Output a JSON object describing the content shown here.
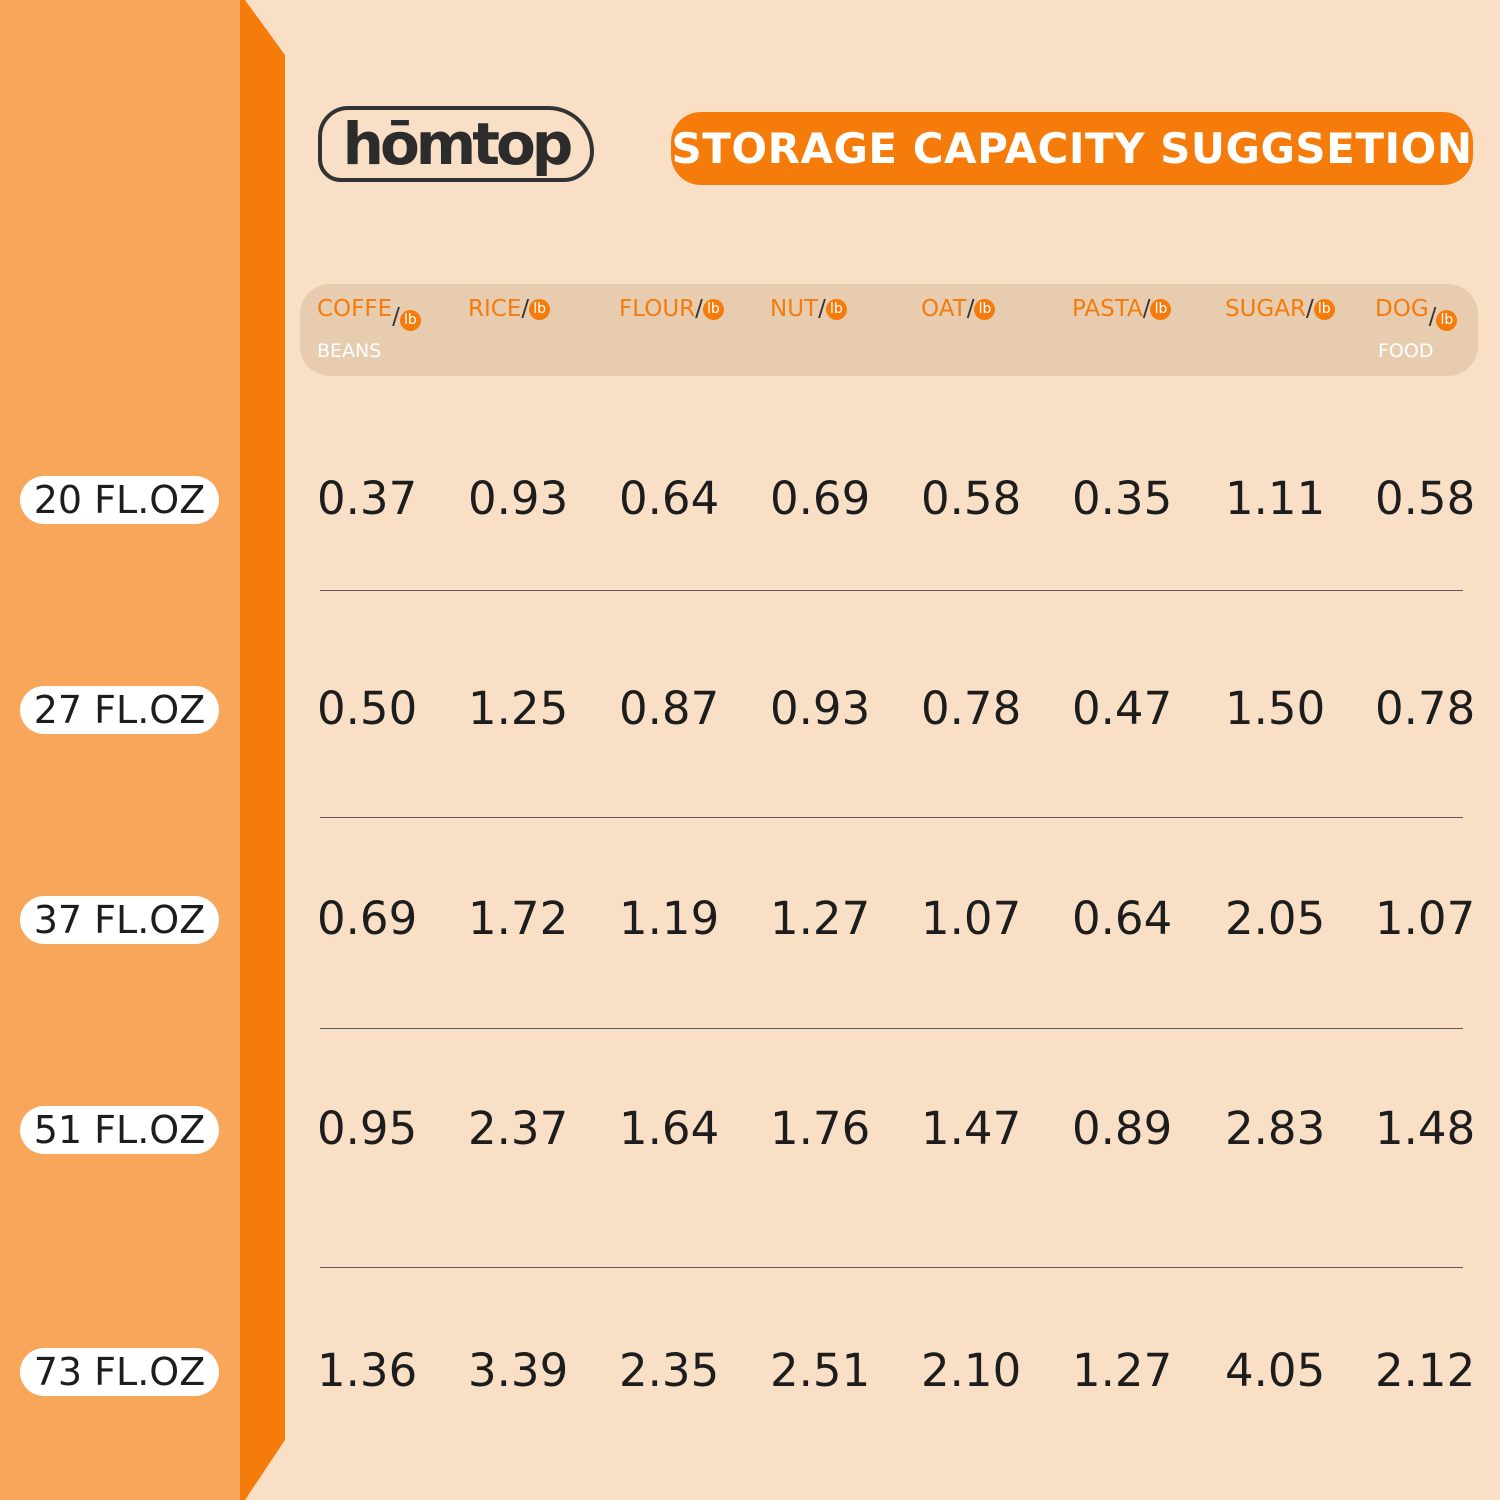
{
  "brand": {
    "logo_text": "hōmtop"
  },
  "title": "STORAGE CAPACITY SUGGSETION",
  "colors": {
    "accent": "#f57c0a",
    "left_panel": "#f8a75a",
    "background": "#f9dfc5",
    "header_bar": "#e8ccb0"
  },
  "unit_icon": "lb",
  "columns": [
    {
      "label": "COFFE",
      "sub": "BEANS"
    },
    {
      "label": "RICE",
      "sub": ""
    },
    {
      "label": "FLOUR",
      "sub": ""
    },
    {
      "label": "NUT",
      "sub": ""
    },
    {
      "label": "OAT",
      "sub": ""
    },
    {
      "label": "PASTA",
      "sub": ""
    },
    {
      "label": "SUGAR",
      "sub": ""
    },
    {
      "label": "DOG",
      "sub": "FOOD"
    }
  ],
  "rows": [
    {
      "size": "20 FL.OZ",
      "values": [
        "0.37",
        "0.93",
        "0.64",
        "0.69",
        "0.58",
        "0.35",
        "1.11",
        "0.58"
      ]
    },
    {
      "size": "27 FL.OZ",
      "values": [
        "0.50",
        "1.25",
        "0.87",
        "0.93",
        "0.78",
        "0.47",
        "1.50",
        "0.78"
      ]
    },
    {
      "size": "37 FL.OZ",
      "values": [
        "0.69",
        "1.72",
        "1.19",
        "1.27",
        "1.07",
        "0.64",
        "2.05",
        "1.07"
      ]
    },
    {
      "size": "51 FL.OZ",
      "values": [
        "0.95",
        "2.37",
        "1.64",
        "1.76",
        "1.47",
        "0.89",
        "2.83",
        "1.48"
      ]
    },
    {
      "size": "73 FL.OZ",
      "values": [
        "1.36",
        "3.39",
        "2.35",
        "2.51",
        "2.10",
        "1.27",
        "4.05",
        "2.12"
      ]
    }
  ]
}
